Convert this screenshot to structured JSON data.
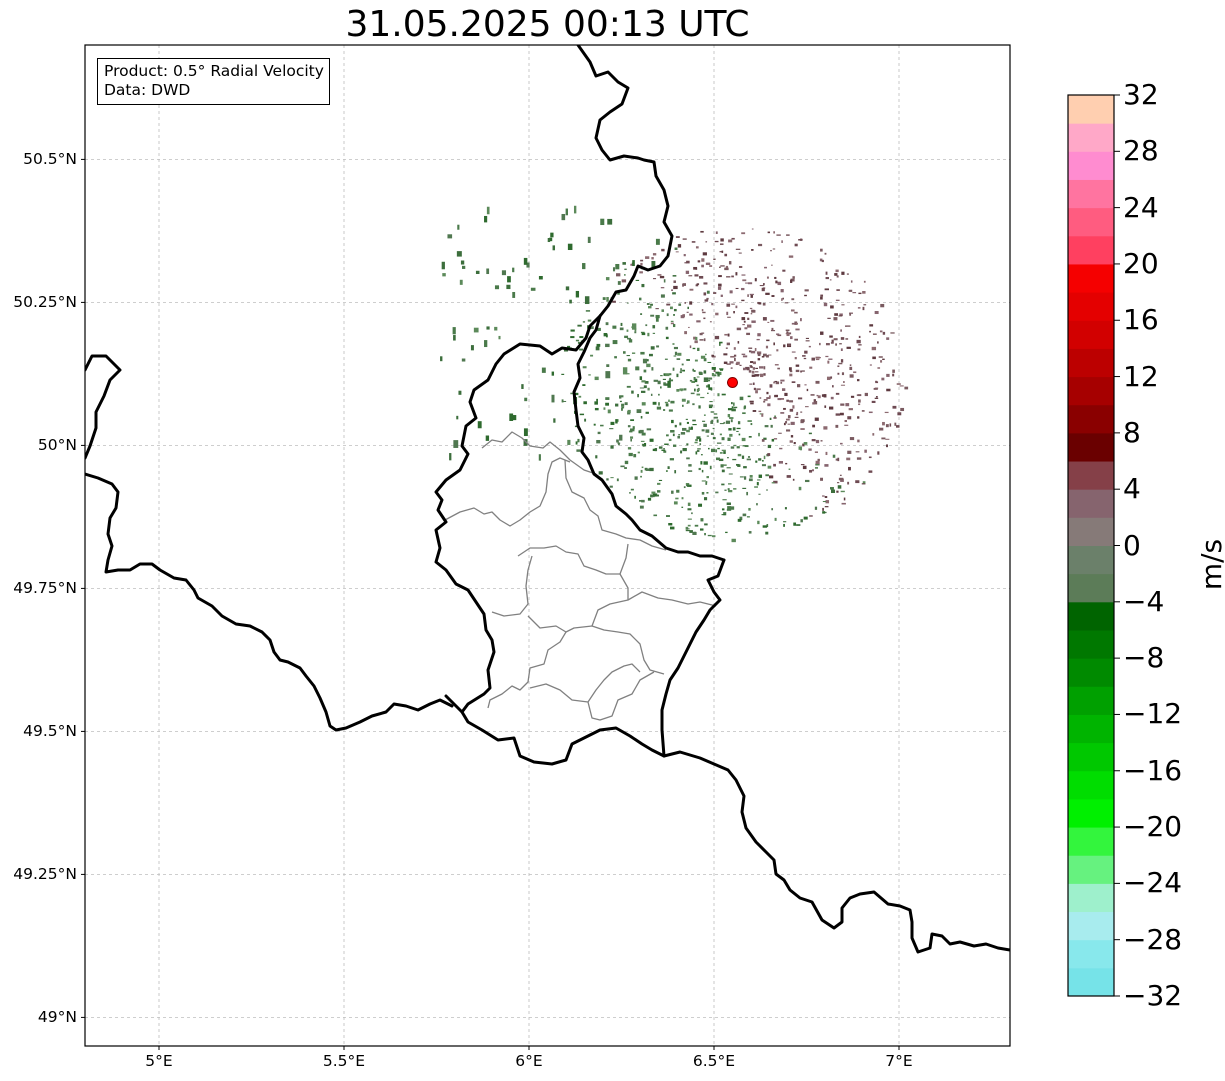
{
  "title": "31.05.2025 00:13 UTC",
  "info_box": {
    "product_line": "Product: 0.5° Radial Velocity",
    "data_line": "Data: DWD"
  },
  "map": {
    "extent": {
      "lon_min": 4.8,
      "lon_max": 7.3,
      "lat_min": 48.95,
      "lat_max": 50.7
    },
    "lat_ticks": [
      {
        "value": 50.5,
        "label": "50.5°N"
      },
      {
        "value": 50.25,
        "label": "50.25°N"
      },
      {
        "value": 50.0,
        "label": "50°N"
      },
      {
        "value": 49.75,
        "label": "49.75°N"
      },
      {
        "value": 49.5,
        "label": "49.5°N"
      },
      {
        "value": 49.25,
        "label": "49.25°N"
      },
      {
        "value": 49.0,
        "label": "49°N"
      }
    ],
    "lon_ticks": [
      {
        "value": 5.0,
        "label": "5°E"
      },
      {
        "value": 5.5,
        "label": "5.5°E"
      },
      {
        "value": 6.0,
        "label": "6°E"
      },
      {
        "value": 6.5,
        "label": "6.5°E"
      },
      {
        "value": 7.0,
        "label": "7°E"
      }
    ],
    "gridlines": true,
    "radar_site": {
      "lon": 6.55,
      "lat": 50.11,
      "color": "#ff0000"
    },
    "border_color": "#000000",
    "district_color": "#808080"
  },
  "colorbar": {
    "unit": "m/s",
    "min": -32,
    "max": 32,
    "ticks": [
      {
        "value": 32,
        "label": "32"
      },
      {
        "value": 28,
        "label": "28"
      },
      {
        "value": 24,
        "label": "24"
      },
      {
        "value": 20,
        "label": "20"
      },
      {
        "value": 16,
        "label": "16"
      },
      {
        "value": 12,
        "label": "12"
      },
      {
        "value": 8,
        "label": "8"
      },
      {
        "value": 4,
        "label": "4"
      },
      {
        "value": 0,
        "label": "0"
      },
      {
        "value": -4,
        "label": "−4"
      },
      {
        "value": -8,
        "label": "−8"
      },
      {
        "value": -12,
        "label": "−12"
      },
      {
        "value": -16,
        "label": "−16"
      },
      {
        "value": -20,
        "label": "−20"
      },
      {
        "value": -24,
        "label": "−24"
      },
      {
        "value": -28,
        "label": "−28"
      },
      {
        "value": -32,
        "label": "−32"
      }
    ],
    "colors_bottom_to_top": [
      "#76e3e8",
      "#88e8ec",
      "#a8ecee",
      "#9ef0cc",
      "#66f27f",
      "#33f53d",
      "#00f000",
      "#00dd00",
      "#00c800",
      "#00b400",
      "#00a000",
      "#008a00",
      "#007800",
      "#006400",
      "#5c7c58",
      "#6b806a",
      "#867a78",
      "#86646e",
      "#854048",
      "#6a0000",
      "#8a0000",
      "#a60000",
      "#bc0000",
      "#d20000",
      "#e40000",
      "#f50000",
      "#ff4060",
      "#ff5c80",
      "#ff74a0",
      "#ff8cd0",
      "#ffa8c8",
      "#ffcfb0"
    ]
  }
}
